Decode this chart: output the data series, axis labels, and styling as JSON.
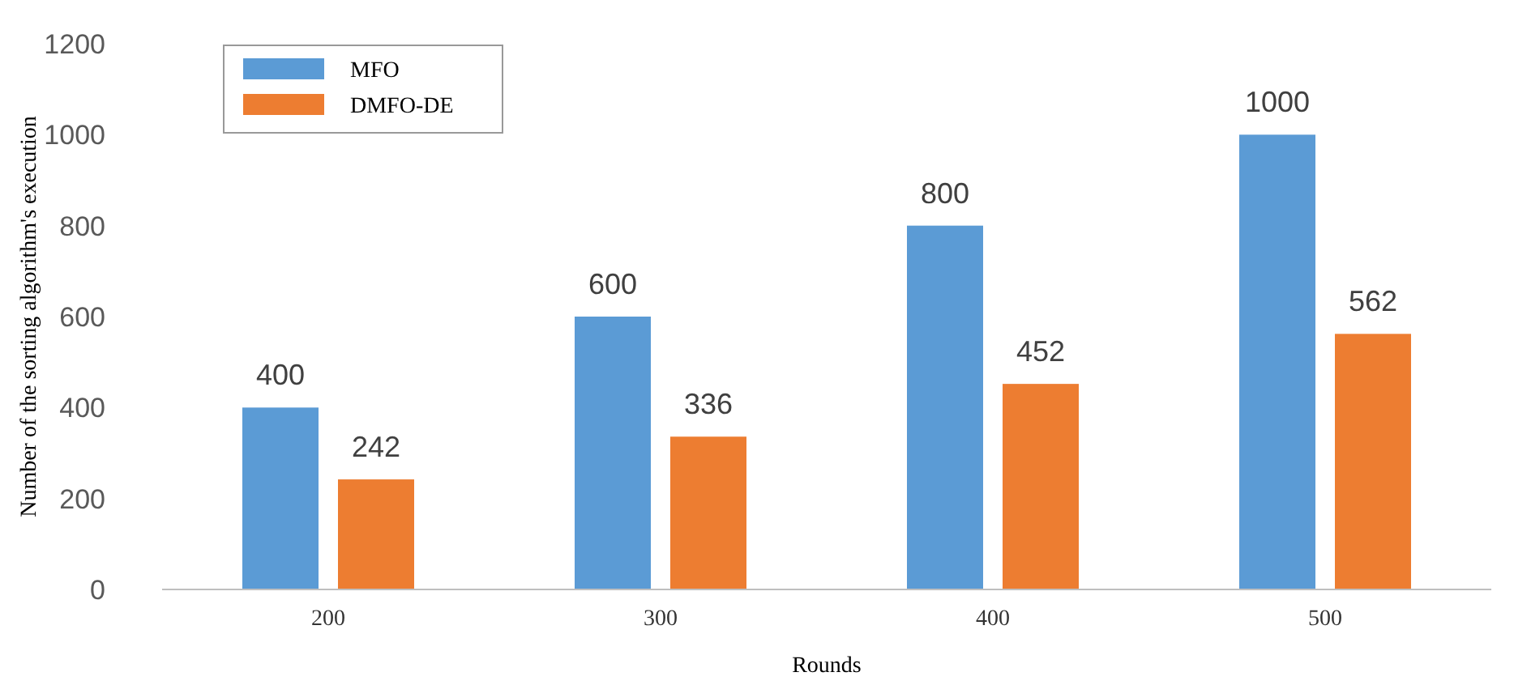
{
  "chart_data": {
    "type": "bar",
    "xlabel": "Rounds",
    "ylabel": "Number of the sorting algorithm's execution",
    "categories": [
      "200",
      "300",
      "400",
      "500"
    ],
    "series": [
      {
        "name": "MFO",
        "color": "#5b9bd5",
        "values": [
          400,
          600,
          800,
          1000
        ]
      },
      {
        "name": "DMFO-DE",
        "color": "#ed7d31",
        "values": [
          242,
          336,
          452,
          562
        ]
      }
    ],
    "ylim": [
      0,
      1200
    ],
    "yticks": [
      0,
      200,
      400,
      600,
      800,
      1000,
      1200
    ],
    "grid": false,
    "legend": "top left",
    "data_labels": true
  }
}
